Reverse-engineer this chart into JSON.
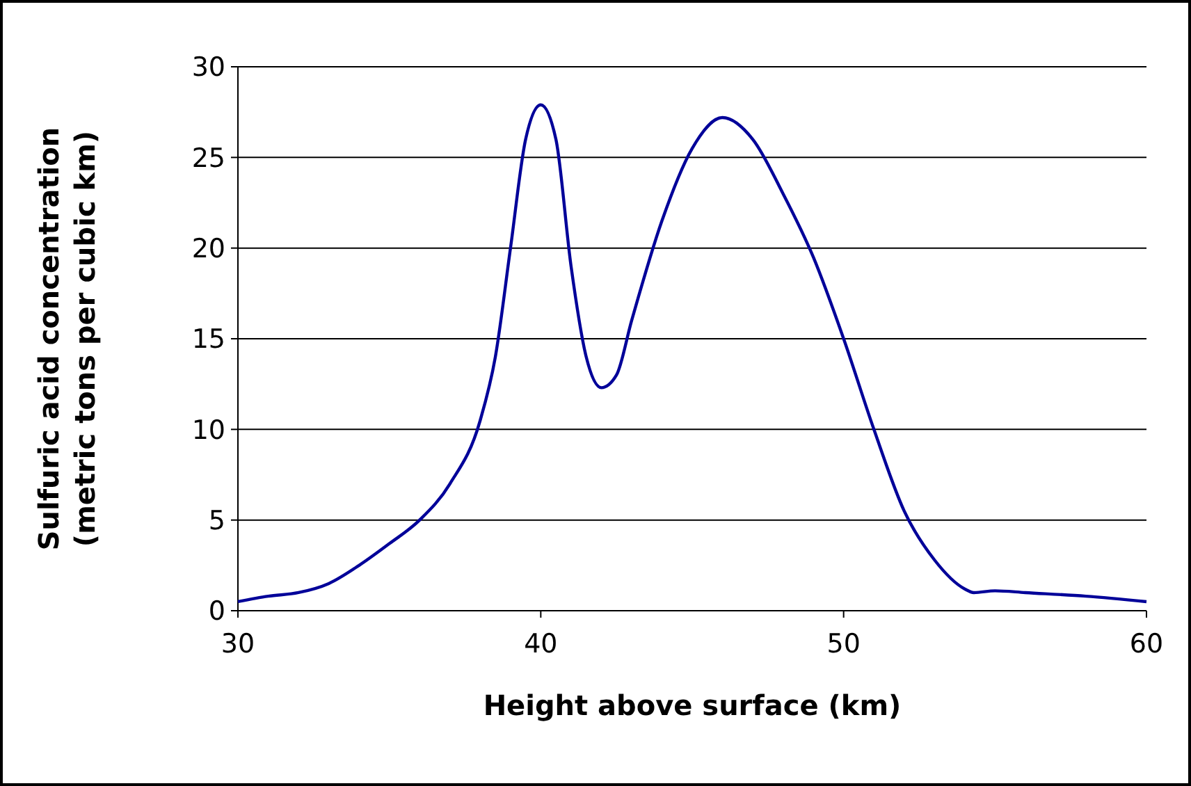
{
  "chart_data": {
    "type": "line",
    "xlabel": "Height above surface (km)",
    "ylabel": "Sulfuric acid concentration\n(metric tons per cubic km)",
    "xlim": [
      30,
      60
    ],
    "xticks": [
      30,
      40,
      50,
      60
    ],
    "ylim": [
      0,
      30
    ],
    "yticks": [
      0,
      5,
      10,
      15,
      20,
      25,
      30
    ],
    "grid": "y",
    "marker": "none",
    "line_style": "solid",
    "series": [
      {
        "color": "#000099",
        "x": [
          30,
          31,
          32,
          33,
          34,
          35,
          36,
          37,
          38,
          38.5,
          39,
          39.5,
          40,
          40.5,
          41,
          41.5,
          42,
          42.5,
          43,
          44,
          45,
          46,
          47,
          48,
          49,
          50,
          51,
          52,
          53,
          54,
          54.3,
          55,
          56,
          58,
          60
        ],
        "values": [
          0.5,
          0.8,
          1.0,
          1.5,
          2.5,
          3.7,
          5.0,
          7.0,
          10.5,
          14,
          20,
          26,
          27.9,
          26,
          19,
          14,
          12.3,
          13,
          16,
          21.5,
          25.5,
          27.2,
          26,
          23,
          19.5,
          15,
          10,
          5.5,
          2.8,
          1.2,
          1.0,
          1.1,
          1.0,
          0.8,
          0.5
        ]
      }
    ]
  }
}
